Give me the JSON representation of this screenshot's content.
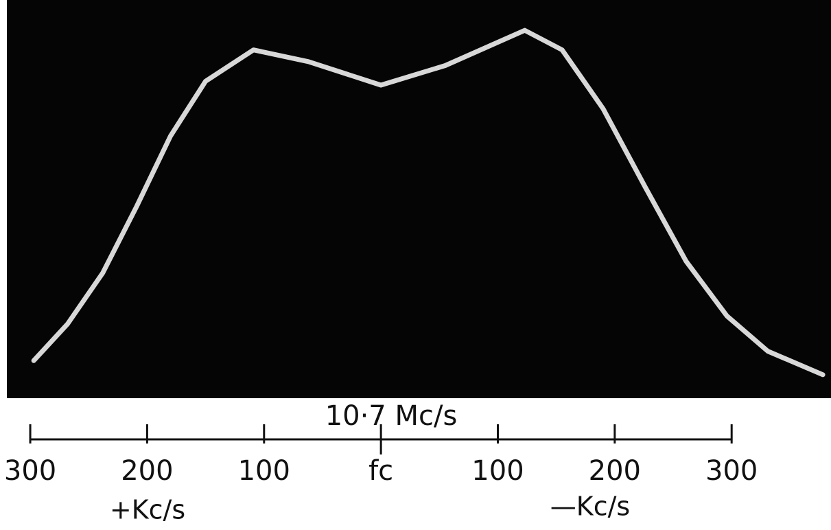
{
  "chart_data": {
    "type": "line",
    "annotation": "10·7 Mc/s",
    "left_label": "+Kc/s",
    "right_label": "—Kc/s",
    "x": [
      297,
      268,
      238,
      209,
      180,
      150,
      109,
      62,
      0,
      -55,
      -123,
      -155,
      -190,
      -226,
      -261,
      -296,
      -331,
      -378
    ],
    "series": [
      {
        "color": "#d8d8d8",
        "values": [
          9.6,
          19,
          32,
          49,
          67,
          81,
          89,
          86,
          80,
          85,
          94,
          89,
          74,
          54,
          35,
          21,
          12,
          6
        ]
      }
    ],
    "xlim": [
      320,
      -385
    ],
    "ylim": [
      0,
      100
    ],
    "xticks": [
      300,
      200,
      100,
      {
        "value": 0,
        "label": "fc"
      },
      {
        "value": -100,
        "label": "100"
      },
      {
        "value": -200,
        "label": "200"
      },
      {
        "value": -300,
        "label": "300"
      }
    ],
    "background": "#050505"
  }
}
